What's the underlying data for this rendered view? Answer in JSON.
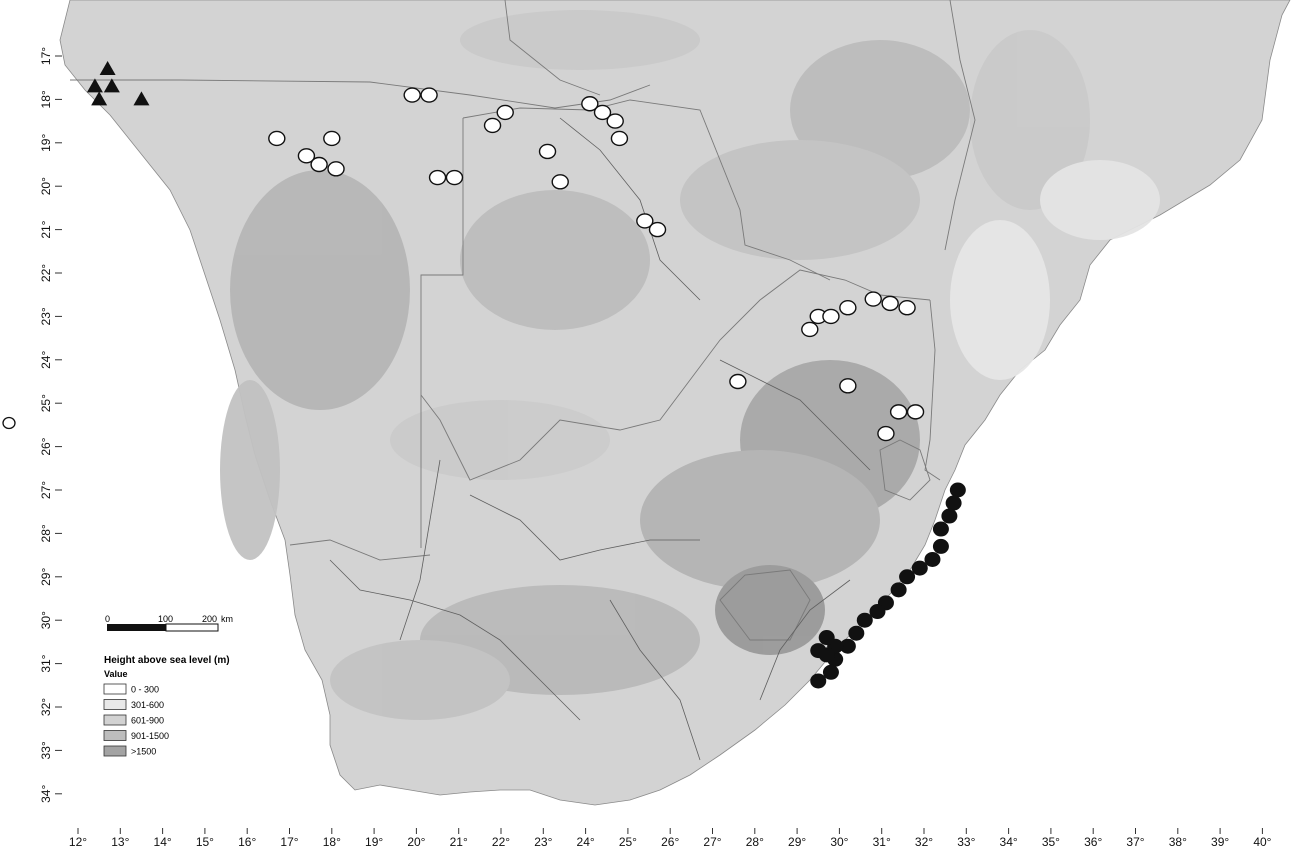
{
  "map": {
    "lon_range": [
      12,
      40
    ],
    "lat_range": [
      -34,
      -17
    ],
    "x_ticks": [
      "12°",
      "13°",
      "14°",
      "15°",
      "16°",
      "17°",
      "18°",
      "19°",
      "20°",
      "21°",
      "22°",
      "23°",
      "24°",
      "25°",
      "26°",
      "27°",
      "28°",
      "29°",
      "30°",
      "31°",
      "32°",
      "33°",
      "34°",
      "35°",
      "36°",
      "37°",
      "38°",
      "39°",
      "40°"
    ],
    "y_ticks": [
      "17°",
      "18°",
      "19°",
      "20°",
      "21°",
      "22°",
      "23°",
      "24°",
      "25°",
      "26°",
      "27°",
      "28°",
      "29°",
      "30°",
      "31°",
      "32°",
      "33°",
      "34°"
    ],
    "land_color": "#d6d6d6",
    "sea_color": "#ffffff",
    "relief_colors": [
      "#ffffff",
      "#e2e2e2",
      "#cfcfcf",
      "#b8b8b8",
      "#9c9c9c"
    ]
  },
  "legend": {
    "title": "Height above sea level (m)",
    "value_label": "Value",
    "classes": [
      {
        "label": "0 - 300",
        "color": "#ffffff"
      },
      {
        "label": "301-600",
        "color": "#e8e8e8"
      },
      {
        "label": "601-900",
        "color": "#d2d2d2"
      },
      {
        "label": "901-1500",
        "color": "#bdbdbd"
      },
      {
        "label": ">1500",
        "color": "#a3a3a3"
      }
    ]
  },
  "scalebar": {
    "labels": [
      "0",
      "100",
      "200",
      "km"
    ]
  },
  "markers": {
    "triangles": [
      {
        "lon": 12.7,
        "lat": -17.3
      },
      {
        "lon": 12.4,
        "lat": -17.7
      },
      {
        "lon": 12.8,
        "lat": -17.7
      },
      {
        "lon": 12.5,
        "lat": -18.0
      },
      {
        "lon": 13.5,
        "lat": -18.0
      }
    ],
    "open_circles": [
      {
        "lon": 19.9,
        "lat": -17.9
      },
      {
        "lon": 20.3,
        "lat": -17.9
      },
      {
        "lon": 16.7,
        "lat": -18.9
      },
      {
        "lon": 17.4,
        "lat": -19.3
      },
      {
        "lon": 17.7,
        "lat": -19.5
      },
      {
        "lon": 18.0,
        "lat": -18.9
      },
      {
        "lon": 18.1,
        "lat": -19.6
      },
      {
        "lon": 20.5,
        "lat": -19.8
      },
      {
        "lon": 20.9,
        "lat": -19.8
      },
      {
        "lon": 21.8,
        "lat": -18.6
      },
      {
        "lon": 22.1,
        "lat": -18.3
      },
      {
        "lon": 23.1,
        "lat": -19.2
      },
      {
        "lon": 23.4,
        "lat": -19.9
      },
      {
        "lon": 24.1,
        "lat": -18.1
      },
      {
        "lon": 24.4,
        "lat": -18.3
      },
      {
        "lon": 24.7,
        "lat": -18.5
      },
      {
        "lon": 24.8,
        "lat": -18.9
      },
      {
        "lon": 25.4,
        "lat": -20.8
      },
      {
        "lon": 25.7,
        "lat": -21.0
      },
      {
        "lon": 29.3,
        "lat": -23.3
      },
      {
        "lon": 29.5,
        "lat": -23.0
      },
      {
        "lon": 29.8,
        "lat": -23.0
      },
      {
        "lon": 30.2,
        "lat": -22.8
      },
      {
        "lon": 30.8,
        "lat": -22.6
      },
      {
        "lon": 31.2,
        "lat": -22.7
      },
      {
        "lon": 31.6,
        "lat": -22.8
      },
      {
        "lon": 27.6,
        "lat": -24.5
      },
      {
        "lon": 30.2,
        "lat": -24.6
      },
      {
        "lon": 31.4,
        "lat": -25.2
      },
      {
        "lon": 31.8,
        "lat": -25.2
      },
      {
        "lon": 31.1,
        "lat": -25.7
      }
    ],
    "filled_circles": [
      {
        "lon": 32.8,
        "lat": -27.0
      },
      {
        "lon": 32.7,
        "lat": -27.3
      },
      {
        "lon": 32.6,
        "lat": -27.6
      },
      {
        "lon": 32.4,
        "lat": -27.9
      },
      {
        "lon": 32.4,
        "lat": -28.3
      },
      {
        "lon": 32.2,
        "lat": -28.6
      },
      {
        "lon": 31.9,
        "lat": -28.8
      },
      {
        "lon": 31.6,
        "lat": -29.0
      },
      {
        "lon": 31.4,
        "lat": -29.3
      },
      {
        "lon": 31.1,
        "lat": -29.6
      },
      {
        "lon": 30.9,
        "lat": -29.8
      },
      {
        "lon": 30.6,
        "lat": -30.0
      },
      {
        "lon": 30.4,
        "lat": -30.3
      },
      {
        "lon": 30.2,
        "lat": -30.6
      },
      {
        "lon": 29.9,
        "lat": -30.9
      },
      {
        "lon": 29.9,
        "lat": -30.6
      },
      {
        "lon": 29.7,
        "lat": -30.4
      },
      {
        "lon": 29.5,
        "lat": -30.7
      },
      {
        "lon": 29.7,
        "lat": -30.8
      },
      {
        "lon": 29.8,
        "lat": -31.2
      },
      {
        "lon": 29.5,
        "lat": -31.4
      }
    ],
    "outside_circle": {
      "label": ""
    }
  }
}
